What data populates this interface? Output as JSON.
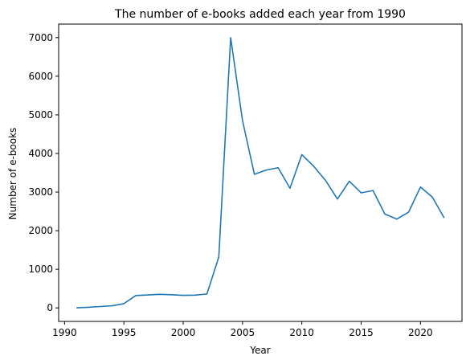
{
  "chart_data": {
    "type": "line",
    "title": "The number of e-books added each year from 1990",
    "xlabel": "Year",
    "ylabel": "Number of e-books",
    "xlim": [
      1989.5,
      2023.5
    ],
    "ylim": [
      -350,
      7350
    ],
    "x_ticks": [
      1990,
      1995,
      2000,
      2005,
      2010,
      2015,
      2020
    ],
    "y_ticks": [
      0,
      1000,
      2000,
      3000,
      4000,
      5000,
      6000,
      7000
    ],
    "grid": false,
    "legend": "none",
    "line_color": "#1f77b4",
    "series": [
      {
        "x": [
          1991,
          1992,
          1993,
          1994,
          1995,
          1996,
          1997,
          1998,
          1999,
          2000,
          2001,
          2002,
          2003,
          2004,
          2005,
          2006,
          2007,
          2008,
          2009,
          2010,
          2011,
          2012,
          2013,
          2014,
          2015,
          2016,
          2017,
          2018,
          2019,
          2020,
          2021,
          2022
        ],
        "values": [
          2,
          15,
          35,
          55,
          110,
          320,
          335,
          350,
          340,
          325,
          330,
          360,
          1320,
          7000,
          4850,
          3460,
          3570,
          3630,
          3100,
          3970,
          3670,
          3300,
          2820,
          3280,
          2980,
          3040,
          2430,
          2300,
          2480,
          3130,
          2870,
          2330
        ]
      }
    ]
  }
}
